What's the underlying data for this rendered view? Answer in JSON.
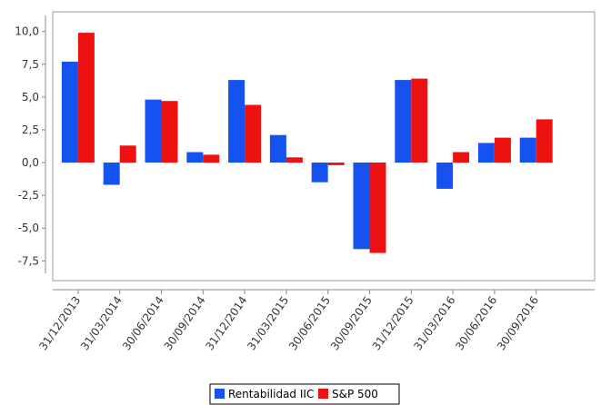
{
  "chart_data": {
    "type": "bar",
    "categories": [
      "31/12/2013",
      "31/03/2014",
      "30/06/2014",
      "30/09/2014",
      "31/12/2014",
      "31/03/2015",
      "30/06/2015",
      "30/09/2015",
      "31/12/2015",
      "31/03/2016",
      "30/06/2016",
      "30/09/2016"
    ],
    "series": [
      {
        "name": "Rentabilidad IIC",
        "color": "#1652F0",
        "values": [
          7.7,
          -1.7,
          4.8,
          0.8,
          6.3,
          2.1,
          -1.5,
          -6.6,
          6.3,
          -2.0,
          1.5,
          1.9
        ]
      },
      {
        "name": "S&P 500",
        "color": "#EE1111",
        "values": [
          9.9,
          1.3,
          4.7,
          0.6,
          4.4,
          0.4,
          -0.2,
          -6.9,
          6.4,
          0.8,
          1.9,
          3.3
        ]
      }
    ],
    "y_ticks": [
      "10,0",
      "7,5",
      "5,0",
      "2,5",
      "0,0",
      "-2,5",
      "-5,0",
      "-7,5"
    ],
    "y_tick_values": [
      10,
      7.5,
      5,
      2.5,
      0,
      -2.5,
      -5,
      -7.5
    ],
    "ylim": [
      -9,
      11.5
    ],
    "grid": false,
    "legend_position": "bottom-center",
    "title": "",
    "xlabel": "",
    "ylabel": ""
  }
}
